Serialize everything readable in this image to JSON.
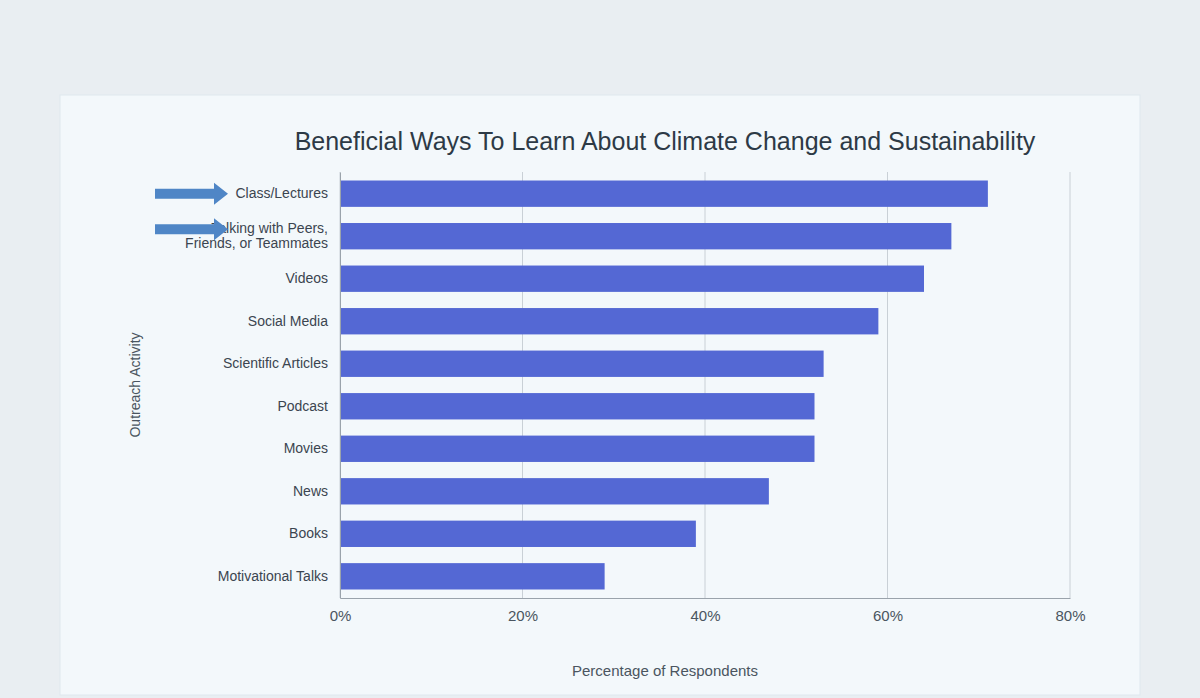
{
  "chart_data": {
    "type": "bar",
    "orientation": "horizontal",
    "title": "Beneficial Ways To Learn About Climate Change and Sustainability",
    "x_label": "Percentage of Respondents",
    "y_label": "Outreach Activity",
    "categories": [
      "Class/Lectures",
      "Talking with Peers, Friends, or Teammates",
      "Videos",
      "Social Media",
      "Scientific Articles",
      "Podcast",
      "Movies",
      "News",
      "Books",
      "Motivational Talks"
    ],
    "values": [
      71,
      67,
      64,
      59,
      53,
      52,
      52,
      47,
      39,
      29
    ],
    "color": "#5468d4",
    "xlim": [
      0,
      80
    ],
    "xticks": [
      {
        "value": 0,
        "label": "0%"
      },
      {
        "value": 20,
        "label": "20%"
      },
      {
        "value": 40,
        "label": "40%"
      },
      {
        "value": 60,
        "label": "60%"
      },
      {
        "value": 80,
        "label": "80%"
      }
    ],
    "grid": true
  }
}
